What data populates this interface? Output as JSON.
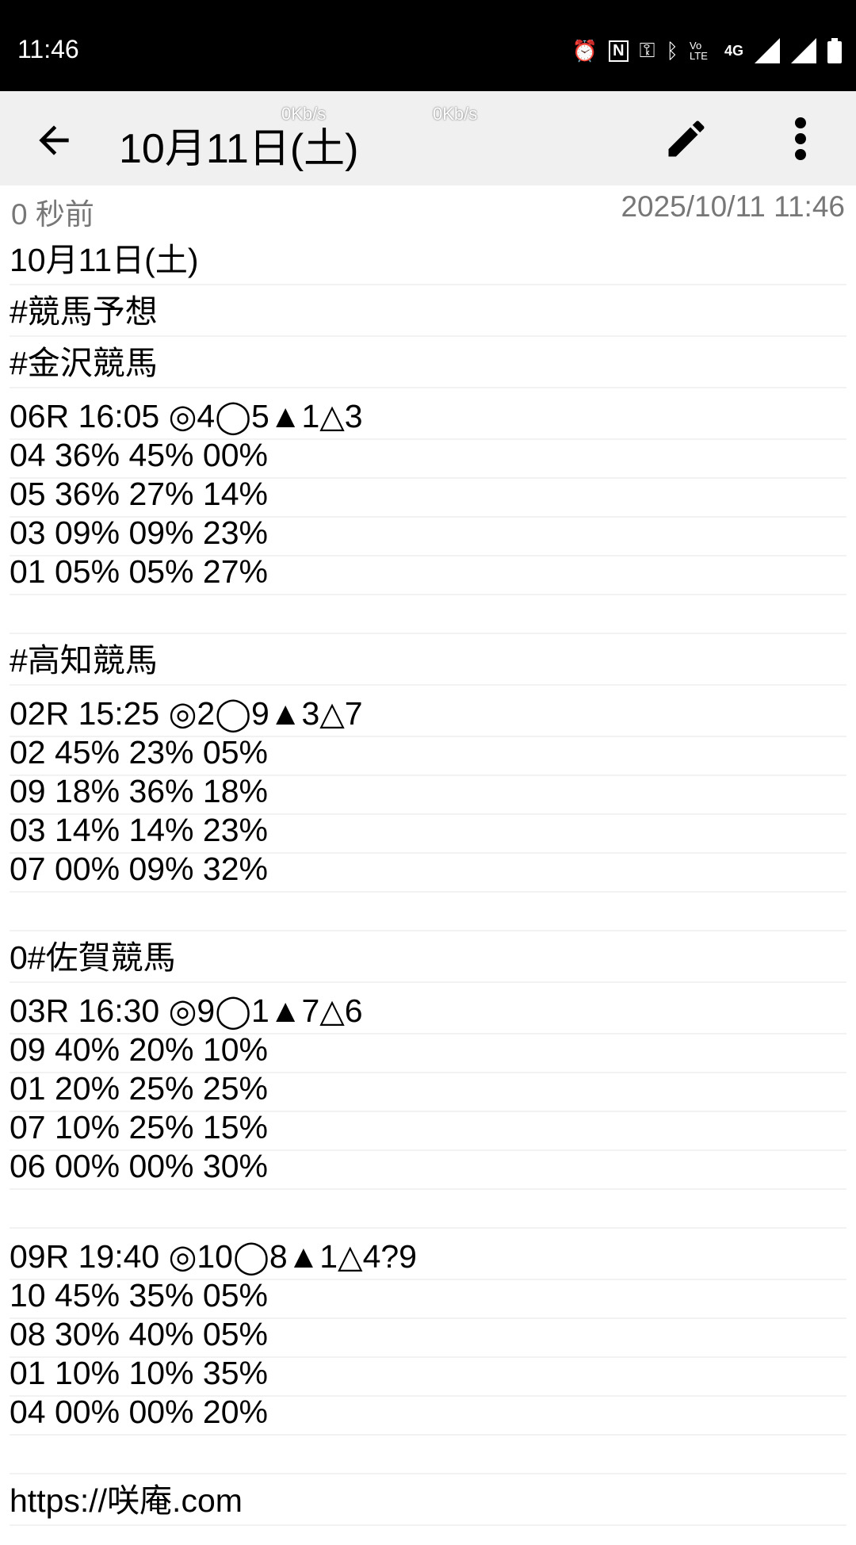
{
  "status_bar": {
    "time": "11:46",
    "icons": [
      "alarm-icon",
      "nfc-icon",
      "vpn-key-icon",
      "bluetooth-icon",
      "volte-icon",
      "4g-icon",
      "signal-icon",
      "signal-icon",
      "battery-icon"
    ],
    "net_label": "4G",
    "volte_label": "Vo LTE"
  },
  "app_bar": {
    "title": "10月11日(土)",
    "speed_1": "0Kb/s",
    "speed_2": "0Kb/s"
  },
  "meta": {
    "relative_time": "0 秒前",
    "timestamp": "2025/10/11 11:46"
  },
  "lines": [
    {
      "t": "10月11日(土)",
      "k": "big"
    },
    {
      "t": "#競馬予想",
      "k": "big"
    },
    {
      "t": "#金沢競馬",
      "k": "big"
    },
    {
      "t": "06R 16:05 ◎4◯5▲1△3",
      "k": "big"
    },
    {
      "t": "04 36% 45% 00%",
      "k": "small"
    },
    {
      "t": "05 36% 27% 14%",
      "k": "small"
    },
    {
      "t": "03 09% 09% 23%",
      "k": "small"
    },
    {
      "t": "01 05% 05% 27%",
      "k": "small"
    },
    {
      "t": "",
      "k": "blank"
    },
    {
      "t": "#高知競馬",
      "k": "big"
    },
    {
      "t": "02R 15:25 ◎2◯9▲3△7",
      "k": "big"
    },
    {
      "t": "02 45% 23% 05%",
      "k": "small"
    },
    {
      "t": "09 18% 36% 18%",
      "k": "small"
    },
    {
      "t": "03 14% 14% 23%",
      "k": "small"
    },
    {
      "t": "07 00% 09% 32%",
      "k": "small"
    },
    {
      "t": "",
      "k": "blank"
    },
    {
      "t": "0#佐賀競馬",
      "k": "big"
    },
    {
      "t": "03R 16:30 ◎9◯1▲7△6",
      "k": "big"
    },
    {
      "t": "09 40% 20% 10%",
      "k": "small"
    },
    {
      "t": "01 20% 25% 25%",
      "k": "small"
    },
    {
      "t": "07 10% 25% 15%",
      "k": "small"
    },
    {
      "t": "06 00% 00% 30%",
      "k": "small"
    },
    {
      "t": "",
      "k": "blank"
    },
    {
      "t": "09R 19:40 ◎10◯8▲1△4?9",
      "k": "big"
    },
    {
      "t": "10 45% 35% 05%",
      "k": "small"
    },
    {
      "t": "08 30% 40% 05%",
      "k": "small"
    },
    {
      "t": "01 10% 10% 35%",
      "k": "small"
    },
    {
      "t": "04 00% 00% 20%",
      "k": "small"
    },
    {
      "t": "",
      "k": "blank"
    },
    {
      "t": "https://咲庵.com",
      "k": "big"
    }
  ]
}
